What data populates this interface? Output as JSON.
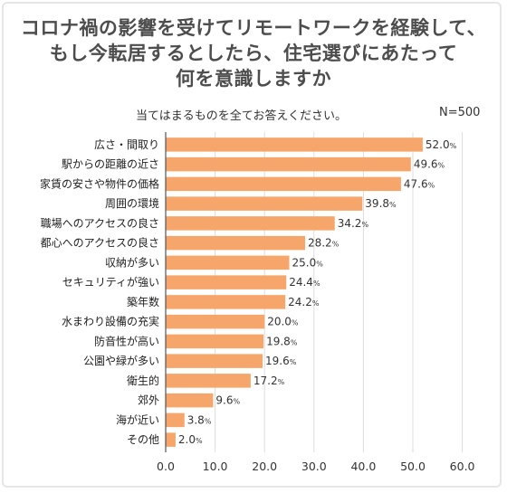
{
  "title_lines": [
    "コロナ禍の影響を受けてリモートワークを経験して、",
    "もし今転居するとしたら、住宅選びにあたって",
    "何を意識しますか"
  ],
  "subtitle": "当てはまるものを全てお答えください。",
  "sample_size": "N=500",
  "colors": {
    "bar": "#f7a66b",
    "grid": "#dddddd",
    "axis": "#555555"
  },
  "chart_data": {
    "type": "bar",
    "orientation": "horizontal",
    "categories": [
      "広さ・間取り",
      "駅からの距離の近さ",
      "家賃の安さや物件の価格",
      "周囲の環境",
      "職場へのアクセスの良さ",
      "都心へのアクセスの良さ",
      "収納が多い",
      "セキュリティが強い",
      "築年数",
      "水まわり設備の充実",
      "防音性が高い",
      "公園や緑が多い",
      "衛生的",
      "郊外",
      "海が近い",
      "その他"
    ],
    "values": [
      52.0,
      49.6,
      47.6,
      39.8,
      34.2,
      28.2,
      25.0,
      24.4,
      24.2,
      20.0,
      19.8,
      19.6,
      17.2,
      9.6,
      3.8,
      2.0
    ],
    "value_labels": [
      "52.0",
      "49.6",
      "47.6",
      "39.8",
      "34.2",
      "28.2",
      "25.0",
      "24.4",
      "24.2",
      "20.0",
      "19.8",
      "19.6",
      "17.2",
      "9.6",
      "3.8",
      "2.0"
    ],
    "value_unit": "%",
    "xlim": [
      0,
      60
    ],
    "x_ticks": [
      "0.0",
      "10.0",
      "20.0",
      "30.0",
      "40.0",
      "50.0",
      "60.0"
    ],
    "grid": true,
    "legend": false
  }
}
